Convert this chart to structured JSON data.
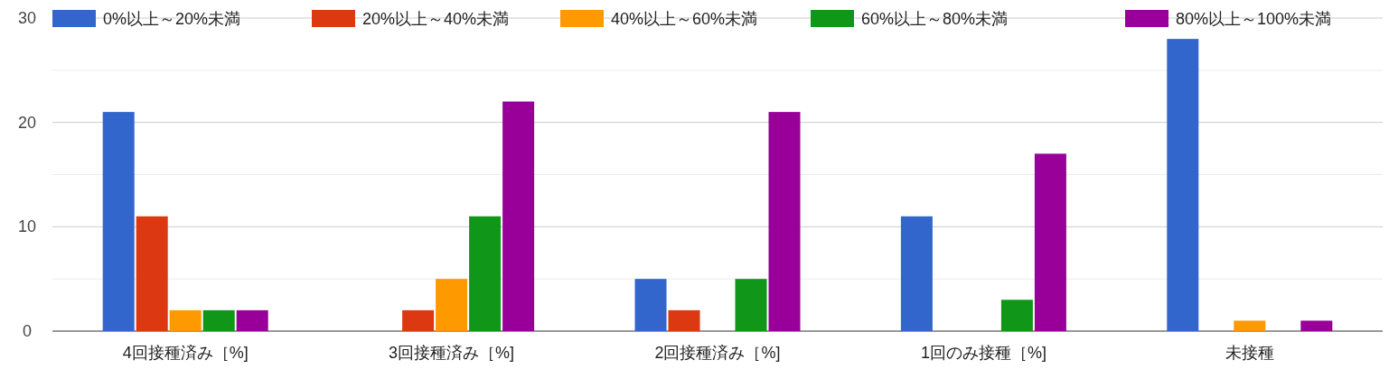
{
  "chart_data": {
    "type": "bar",
    "categories": [
      "4回接種済み［%]",
      "3回接種済み［%]",
      "2回接種済み［%]",
      "1回のみ接種［%]",
      "未接種"
    ],
    "series": [
      {
        "name": "0%以上～20%未満",
        "color": "#3366cc",
        "values": [
          21,
          0,
          5,
          11,
          28
        ]
      },
      {
        "name": "20%以上～40%未満",
        "color": "#dc3912",
        "values": [
          11,
          2,
          2,
          0,
          0
        ]
      },
      {
        "name": "40%以上～60%未満",
        "color": "#ff9900",
        "values": [
          2,
          5,
          0,
          0,
          1
        ]
      },
      {
        "name": "60%以上～80%未満",
        "color": "#109618",
        "values": [
          2,
          11,
          5,
          3,
          0
        ]
      },
      {
        "name": "80%以上～100%未満",
        "color": "#990099",
        "values": [
          2,
          22,
          21,
          17,
          1
        ]
      }
    ],
    "ylim": [
      0,
      30
    ],
    "yticks": [
      0,
      {
        "value": 5,
        "label": null
      },
      10,
      {
        "value": 15,
        "label": null
      },
      20,
      {
        "value": 25,
        "label": null
      },
      30
    ],
    "grid": "y",
    "legend": "top"
  }
}
